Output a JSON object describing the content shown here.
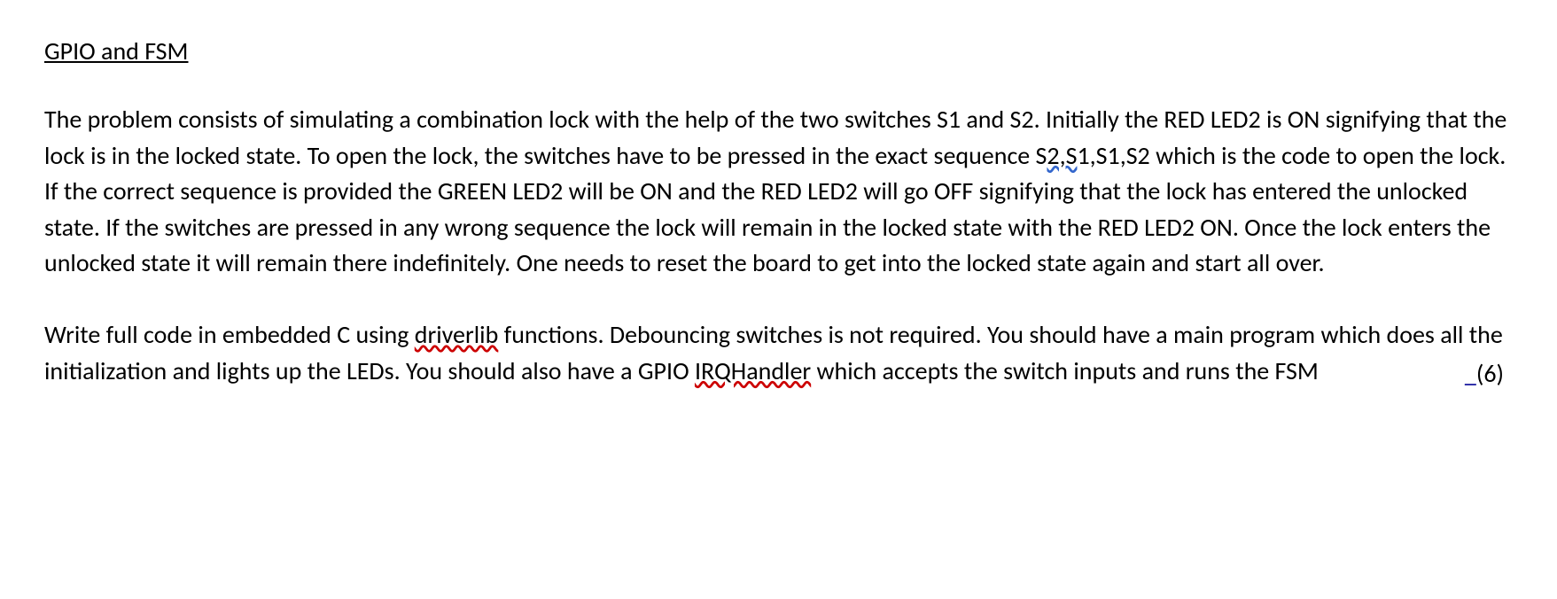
{
  "heading": "GPIO and FSM",
  "para1_part1": "The problem consists of simulating a combination lock with the help of the two switches S1 and S2. Initially the RED LED2 is ON signifying that the lock is in the locked state. To open the lock, the switches have to be pressed in the exact sequence S",
  "para1_squiggle1": "2,S",
  "para1_part2": "1,S1,S2 which is the code to open the lock. If the correct sequence is provided the GREEN LED2 will be ON and the RED LED2 will go OFF signifying that the lock has entered the unlocked state. If the switches are pressed in any wrong sequence the lock will remain in the locked state with the RED LED2 ON. Once the lock enters the unlocked state it will remain there indefinitely.  One needs to reset the board to get into the locked state again and start all over.",
  "para2_part1": "Write full code in embedded C using ",
  "para2_driverlib": "driverlib",
  "para2_part2": " functions. Debouncing switches is not required. You should have a main program which does all the initialization and lights up the LEDs.  You should also have a GPIO ",
  "para2_irqhandler": "IRQHandler",
  "para2_part3": " which accepts the switch inputs and runs the FSM",
  "points": "(6)",
  "colors": {
    "text": "#000000",
    "background": "#ffffff",
    "squiggle_red": "#cc0000",
    "squiggle_blue": "#3366cc"
  },
  "fontsize_body": 28
}
